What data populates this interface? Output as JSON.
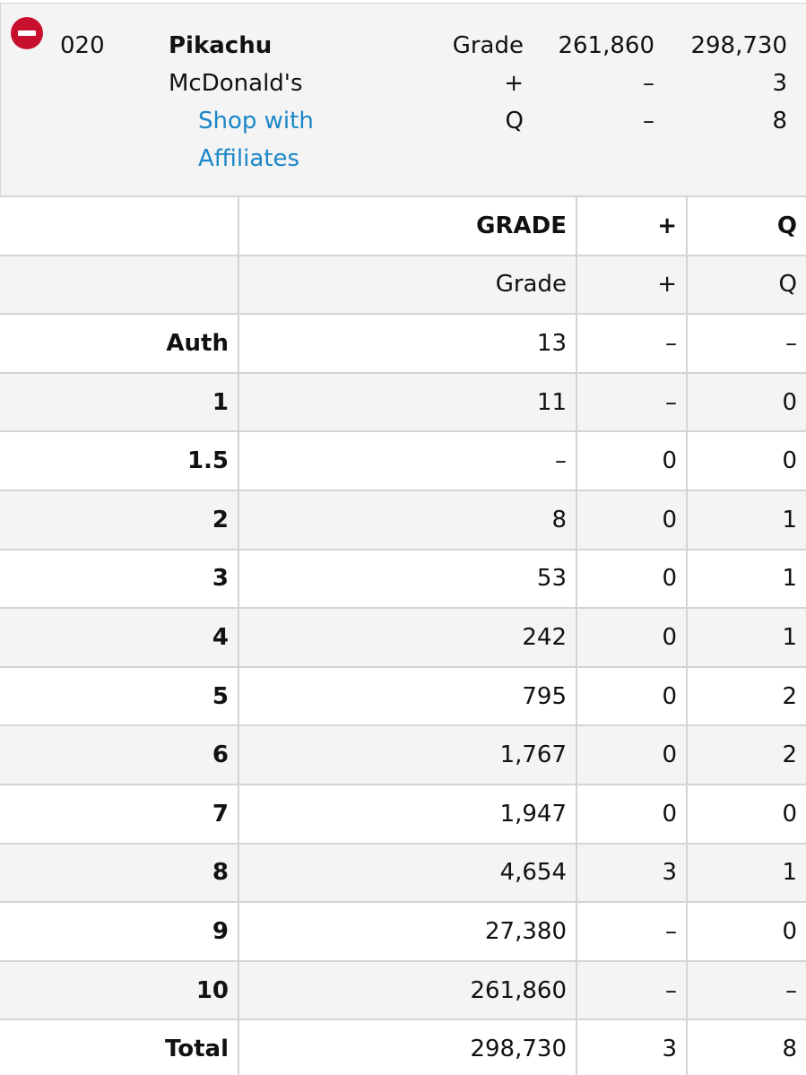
{
  "summary": {
    "number": "020",
    "name": "Pikachu",
    "set": "McDonald's",
    "link_line1": "Shop with",
    "link_line2": "Affiliates",
    "rows": [
      {
        "label": "Grade",
        "col1": "261,860",
        "col2": "298,730"
      },
      {
        "label": "+",
        "col1": "–",
        "col2": "3"
      },
      {
        "label": "Q",
        "col1": "–",
        "col2": "8"
      }
    ],
    "icon": "minus-circle-icon",
    "accent_color": "#c8102e",
    "link_color": "#1a86c8"
  },
  "table": {
    "header": [
      "",
      "GRADE",
      "+",
      "Q"
    ],
    "subheader": [
      "",
      "Grade",
      "+",
      "Q"
    ],
    "rows": [
      [
        "Auth",
        "13",
        "–",
        "–"
      ],
      [
        "1",
        "11",
        "–",
        "0"
      ],
      [
        "1.5",
        "–",
        "0",
        "0"
      ],
      [
        "2",
        "8",
        "0",
        "1"
      ],
      [
        "3",
        "53",
        "0",
        "1"
      ],
      [
        "4",
        "242",
        "0",
        "1"
      ],
      [
        "5",
        "795",
        "0",
        "2"
      ],
      [
        "6",
        "1,767",
        "0",
        "2"
      ],
      [
        "7",
        "1,947",
        "0",
        "0"
      ],
      [
        "8",
        "4,654",
        "3",
        "1"
      ],
      [
        "9",
        "27,380",
        "–",
        "0"
      ],
      [
        "10",
        "261,860",
        "–",
        "–"
      ],
      [
        "Total",
        "298,730",
        "3",
        "8"
      ]
    ]
  }
}
